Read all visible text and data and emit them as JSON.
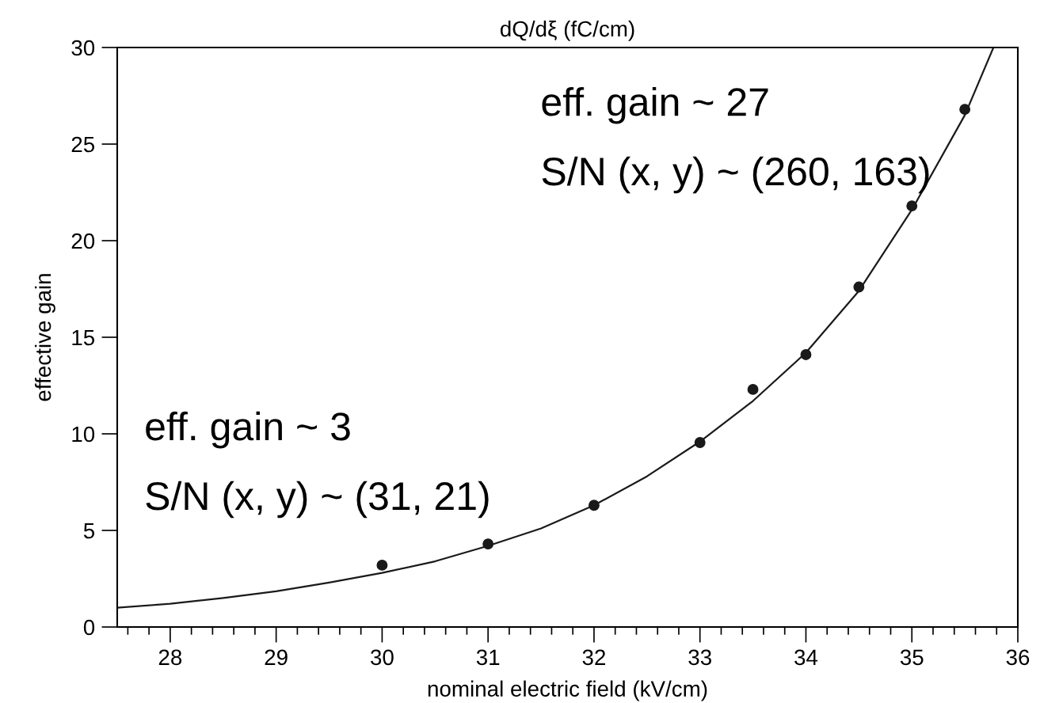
{
  "chart_data": {
    "type": "scatter",
    "title": "dQ/dξ (fC/cm)",
    "xlabel": "nominal electric field (kV/cm)",
    "ylabel": "effective gain",
    "xlim": [
      27.5,
      36
    ],
    "xticks": [
      28,
      29,
      30,
      31,
      32,
      33,
      34,
      35,
      36
    ],
    "ylim": [
      0,
      30
    ],
    "yticks": [
      0,
      5,
      10,
      15,
      20,
      25,
      30
    ],
    "grid": false,
    "legend": false,
    "series": [
      {
        "color": "#1a1a1a",
        "marker": "circle",
        "x": [
          30,
          31,
          32,
          33,
          33.5,
          34,
          34.5,
          35,
          35.5
        ],
        "values": [
          3.2,
          4.3,
          6.3,
          9.55,
          12.3,
          14.1,
          17.6,
          21.8,
          26.8
        ]
      },
      {
        "type": "line",
        "color": "#1a1a1a",
        "line_style": "solid",
        "marker": "none",
        "x": [
          27.5,
          28,
          28.5,
          29,
          29.5,
          30,
          30.5,
          31,
          31.5,
          32,
          32.5,
          33,
          33.5,
          34,
          34.5,
          35,
          35.5,
          35.77
        ],
        "values": [
          1.0,
          1.2,
          1.5,
          1.85,
          2.3,
          2.8,
          3.4,
          4.2,
          5.1,
          6.3,
          7.8,
          9.6,
          11.7,
          14.2,
          17.4,
          21.6,
          26.5,
          30
        ]
      }
    ],
    "annotations": [
      "eff. gain ~ 27",
      "S/N (x, y) ~ (260, 163)",
      "eff. gain ~ 3",
      "S/N (x, y) ~ (31, 21)"
    ]
  }
}
